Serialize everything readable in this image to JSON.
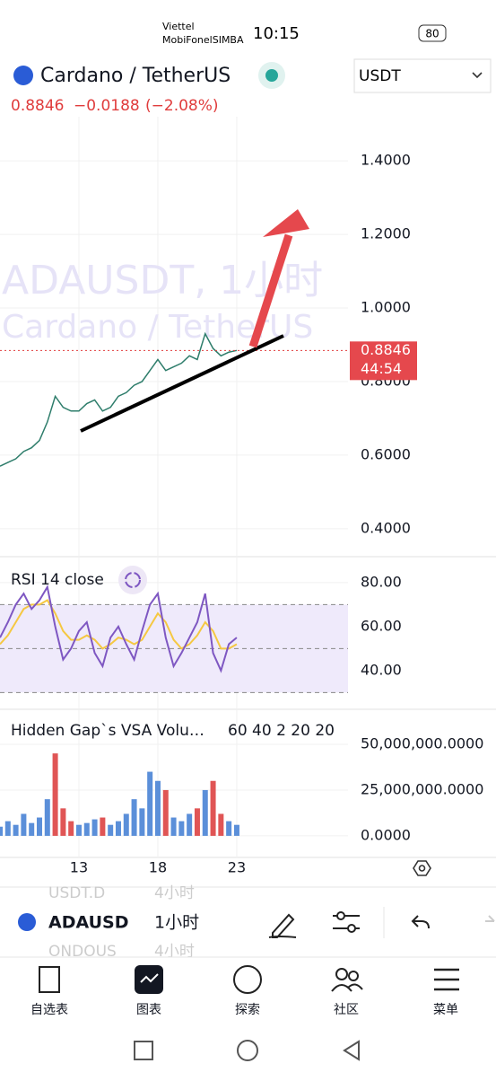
{
  "status_bar": {
    "carrier1": "Viettel",
    "carrier2": "MobiFonelSIMBA",
    "time": "10:15",
    "battery": "80"
  },
  "header": {
    "symbol_title": "Cardano / TetherUS",
    "currency": "USDT",
    "price": "0.8846",
    "change": "−0.0188",
    "change_pct": "(−2.08%)"
  },
  "chart_data": [
    {
      "type": "line",
      "watermark_1": "ADAUSDT, 1小时",
      "watermark_2": "Cardano / TetherUS",
      "price_label": "0.8846",
      "countdown": "44:54",
      "color": "#2e7d6b",
      "x": [
        8,
        8.5,
        9,
        9.5,
        10,
        10.5,
        11,
        11.5,
        12,
        12.5,
        13,
        13.5,
        14,
        14.5,
        15,
        15.5,
        16,
        16.5,
        17,
        17.5,
        18,
        18.5,
        19,
        19.5,
        20,
        20.5,
        21,
        21.5,
        22,
        22.5,
        23
      ],
      "values": [
        0.57,
        0.58,
        0.59,
        0.61,
        0.62,
        0.64,
        0.69,
        0.76,
        0.73,
        0.72,
        0.72,
        0.74,
        0.75,
        0.72,
        0.73,
        0.76,
        0.77,
        0.79,
        0.8,
        0.83,
        0.86,
        0.83,
        0.84,
        0.85,
        0.87,
        0.86,
        0.93,
        0.89,
        0.87,
        0.88,
        0.8846
      ],
      "xlim": [
        8,
        30.05
      ],
      "xticks": [
        13,
        18,
        23
      ],
      "ylim": [
        0.324,
        1.52
      ],
      "yticks": [
        {
          "value": 0.4,
          "label": "0.4000"
        },
        {
          "value": 0.6,
          "label": "0.6000"
        },
        {
          "value": 0.8,
          "label": "0.8000"
        },
        {
          "value": 1,
          "label": "1.0000"
        },
        {
          "value": 1.2,
          "label": "1.2000"
        },
        {
          "value": 1.4,
          "label": "1.4000"
        }
      ]
    },
    {
      "type": "line",
      "title": "RSI 14 close",
      "x": [
        8,
        8.5,
        9,
        9.5,
        10,
        10.5,
        11,
        11.5,
        12,
        12.5,
        13,
        13.5,
        14,
        14.5,
        15,
        15.5,
        16,
        16.5,
        17,
        17.5,
        18,
        18.5,
        19,
        19.5,
        20,
        20.5,
        21,
        21.5,
        22,
        22.5,
        23
      ],
      "series": [
        {
          "color": "#7e57c2",
          "values": [
            55,
            62,
            70,
            75,
            68,
            72,
            78,
            60,
            45,
            50,
            58,
            62,
            48,
            42,
            55,
            60,
            52,
            45,
            58,
            70,
            75,
            55,
            42,
            48,
            55,
            62,
            75,
            48,
            40,
            52,
            55
          ]
        },
        {
          "color": "#f5c842",
          "values": [
            52,
            56,
            62,
            68,
            70,
            70,
            72,
            66,
            58,
            54,
            54,
            56,
            54,
            50,
            52,
            55,
            54,
            52,
            54,
            60,
            66,
            62,
            54,
            50,
            52,
            56,
            62,
            58,
            50,
            50,
            52
          ]
        }
      ],
      "band_lines": [
        70,
        50,
        30
      ],
      "xlim": [
        8,
        30.05
      ],
      "xticks": [
        13,
        18,
        23
      ],
      "ylim": [
        22.4,
        91.8
      ],
      "yticks": [
        {
          "value": 40,
          "label": "40.00"
        },
        {
          "value": 60,
          "label": "60.00"
        },
        {
          "value": 80,
          "label": "80.00"
        }
      ]
    },
    {
      "type": "bar",
      "title": "Hidden Gap`s VSA Volu…",
      "params": "60 40 2 20 20",
      "x": [
        8,
        8.5,
        9,
        9.5,
        10,
        10.5,
        11,
        11.5,
        12,
        12.5,
        13,
        13.5,
        14,
        14.5,
        15,
        15.5,
        16,
        16.5,
        17,
        17.5,
        18,
        18.5,
        19,
        19.5,
        20,
        20.5,
        21,
        21.5,
        22,
        22.5,
        23
      ],
      "values": [
        5000000,
        8000000,
        6000000,
        12000000,
        7000000,
        10000000,
        20000000,
        45000000,
        15000000,
        8000000,
        6000000,
        7000000,
        9000000,
        10000000,
        6000000,
        8000000,
        12000000,
        20000000,
        15000000,
        35000000,
        30000000,
        25000000,
        10000000,
        8000000,
        12000000,
        15000000,
        25000000,
        30000000,
        12000000,
        8000000,
        6000000
      ],
      "bar_colors": [
        "#5b8fd9",
        "#5b8fd9",
        "#5b8fd9",
        "#5b8fd9",
        "#5b8fd9",
        "#5b8fd9",
        "#5b8fd9",
        "#e05555",
        "#e05555",
        "#e05555",
        "#5b8fd9",
        "#5b8fd9",
        "#5b8fd9",
        "#e05555",
        "#5b8fd9",
        "#5b8fd9",
        "#5b8fd9",
        "#5b8fd9",
        "#5b8fd9",
        "#5b8fd9",
        "#5b8fd9",
        "#e05555",
        "#5b8fd9",
        "#5b8fd9",
        "#5b8fd9",
        "#e05555",
        "#5b8fd9",
        "#e05555",
        "#e05555",
        "#5b8fd9",
        "#5b8fd9"
      ],
      "xlim": [
        8,
        30.05
      ],
      "xticks": [
        13,
        18,
        23
      ],
      "ylim": [
        -11800000,
        69100000
      ],
      "yticks": [
        {
          "value": 0,
          "label": "0.0000"
        },
        {
          "value": 25000000,
          "label": "25,000,000.0000"
        },
        {
          "value": 50000000,
          "label": "50,000,000.0000"
        }
      ]
    }
  ],
  "toolbar": {
    "symbol": "ADAUSD",
    "interval": "1小时",
    "ghost_1_symbol": "USDT.D",
    "ghost_1_interval": "4小时",
    "ghost_2_symbol": "ONDOUS",
    "ghost_2_interval": "4小时"
  },
  "nav": [
    "自选表",
    "图表",
    "探索",
    "社区",
    "菜单"
  ]
}
